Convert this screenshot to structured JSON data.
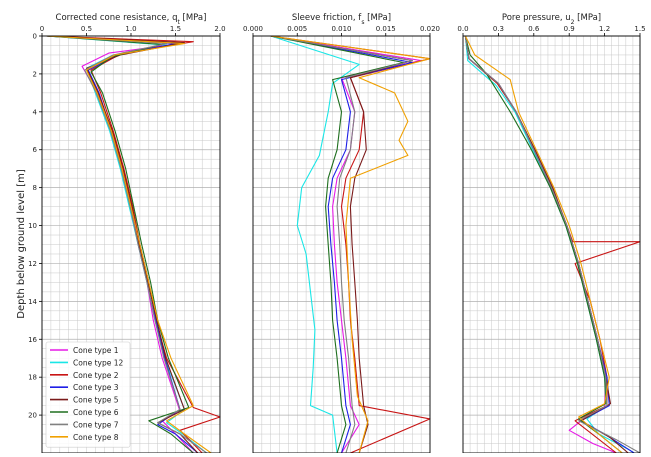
{
  "figure": {
    "ylabel": "Depth below ground level [m]",
    "legend_position": "lower-left of first panel"
  },
  "legend": [
    {
      "name": "Cone type 1",
      "color": "#e619e6"
    },
    {
      "name": "Cone type 12",
      "color": "#19e6e6"
    },
    {
      "name": "Cone type 2",
      "color": "#c81414"
    },
    {
      "name": "Cone type 3",
      "color": "#1e1ee6"
    },
    {
      "name": "Cone type 5",
      "color": "#7a1a1a"
    },
    {
      "name": "Cone type 6",
      "color": "#1e6e1e"
    },
    {
      "name": "Cone type 7",
      "color": "#808080"
    },
    {
      "name": "Cone type 8",
      "color": "#f0a000"
    }
  ],
  "chart_data": [
    {
      "type": "line",
      "title": "Corrected cone resistance, q",
      "title_sub": "t",
      "title_tail": " [MPa]",
      "xlabel": "Corrected cone resistance, qt [MPa]",
      "ylabel": "Depth below ground level [m]",
      "xlim": [
        0,
        2.0
      ],
      "ylim": [
        22,
        0
      ],
      "y_inverted": true,
      "x_axis_position": "top",
      "grid": true,
      "xticks": [
        0,
        0.5,
        1.0,
        1.5,
        2.0
      ],
      "xtick_labels": [
        "0",
        "0.5",
        "1.0",
        "1.5",
        "2.0"
      ],
      "yticks": [
        0,
        2,
        4,
        6,
        8,
        10,
        12,
        14,
        16,
        18,
        20
      ],
      "ytick_labels": [
        "0",
        "2",
        "4",
        "6",
        "8",
        "10",
        "12",
        "14",
        "16",
        "18",
        "20"
      ],
      "series": [
        {
          "name": "Cone type 1",
          "color": "#e619e6",
          "x": [
            0.05,
            1.55,
            0.75,
            0.45,
            0.62,
            0.78,
            0.9,
            1.0,
            1.08,
            1.18,
            1.25,
            1.35,
            1.55,
            1.35,
            1.5,
            1.7
          ],
          "y": [
            0,
            0.4,
            0.9,
            1.6,
            3,
            5,
            7,
            9,
            11,
            13,
            15,
            17,
            19.8,
            20.3,
            21,
            22
          ]
        },
        {
          "name": "Cone type 12",
          "color": "#19e6e6",
          "x": [
            0.05,
            1.45,
            0.8,
            0.5,
            0.6,
            0.76,
            0.88,
            0.98,
            1.08,
            1.18,
            1.27,
            1.38,
            1.6,
            1.4,
            1.58,
            1.85
          ],
          "y": [
            0,
            0.5,
            1.0,
            1.7,
            3,
            5,
            7,
            9,
            11,
            13,
            15,
            17,
            19.7,
            20.4,
            21,
            22
          ]
        },
        {
          "name": "Cone type 2",
          "color": "#c81414",
          "x": [
            0.05,
            1.7,
            0.9,
            0.55,
            0.66,
            0.8,
            0.92,
            1.02,
            1.1,
            1.2,
            1.28,
            1.4,
            1.7,
            2.0,
            1.55,
            1.8
          ],
          "y": [
            0,
            0.3,
            0.9,
            1.8,
            3,
            5,
            7,
            9,
            11,
            13,
            15,
            17,
            19.6,
            20.1,
            20.8,
            22
          ]
        },
        {
          "name": "Cone type 3",
          "color": "#1e1ee6",
          "x": [
            0.05,
            1.5,
            0.85,
            0.52,
            0.64,
            0.78,
            0.9,
            1.0,
            1.1,
            1.2,
            1.28,
            1.38,
            1.55,
            1.3,
            1.5,
            1.75
          ],
          "y": [
            0,
            0.4,
            1.0,
            1.8,
            3,
            5,
            7,
            9,
            11,
            13,
            15,
            17,
            19.7,
            20.5,
            21,
            22
          ]
        },
        {
          "name": "Cone type 5",
          "color": "#7a1a1a",
          "x": [
            0.05,
            1.6,
            0.88,
            0.5,
            0.63,
            0.79,
            0.91,
            1.01,
            1.09,
            1.19,
            1.29,
            1.39,
            1.6,
            1.3,
            1.55,
            1.75
          ],
          "y": [
            0,
            0.35,
            1.0,
            1.7,
            3,
            5,
            7,
            9,
            11,
            13,
            15,
            17,
            19.7,
            20.4,
            21,
            22
          ]
        },
        {
          "name": "Cone type 6",
          "color": "#1e6e1e",
          "x": [
            0.05,
            1.35,
            0.78,
            0.55,
            0.68,
            0.82,
            0.94,
            1.03,
            1.12,
            1.22,
            1.3,
            1.42,
            1.65,
            1.2,
            1.45,
            1.7
          ],
          "y": [
            0,
            0.45,
            1.1,
            1.9,
            3,
            5,
            7,
            9,
            11,
            13,
            15,
            17,
            19.6,
            20.3,
            21,
            22
          ]
        },
        {
          "name": "Cone type 7",
          "color": "#808080",
          "x": [
            0.05,
            1.4,
            0.8,
            0.48,
            0.61,
            0.77,
            0.89,
            0.99,
            1.08,
            1.18,
            1.27,
            1.37,
            1.55,
            1.3,
            1.55,
            1.85
          ],
          "y": [
            0,
            0.4,
            1.0,
            1.8,
            3,
            5,
            7,
            9,
            11,
            13,
            15,
            17,
            19.7,
            20.4,
            21,
            22
          ]
        },
        {
          "name": "Cone type 8",
          "color": "#f0a000",
          "x": [
            0.05,
            1.6,
            0.82,
            0.5,
            0.62,
            0.78,
            0.9,
            1.0,
            1.1,
            1.2,
            1.3,
            1.45,
            1.7,
            1.4,
            1.6,
            1.9
          ],
          "y": [
            0,
            0.4,
            1.0,
            1.8,
            3,
            5,
            7,
            9,
            11,
            13,
            15,
            17,
            19.5,
            20.3,
            21,
            22
          ]
        }
      ]
    },
    {
      "type": "line",
      "title": "Sleeve friction, f",
      "title_sub": "s",
      "title_tail": " [MPa]",
      "xlabel": "Sleeve friction, fs [MPa]",
      "xlim": [
        0,
        0.02
      ],
      "ylim": [
        22,
        0
      ],
      "y_inverted": true,
      "x_axis_position": "top",
      "grid": true,
      "xticks": [
        0,
        0.005,
        0.01,
        0.015,
        0.02
      ],
      "xtick_labels": [
        "0.000",
        "0.005",
        "0.010",
        "0.015",
        "0.020"
      ],
      "series": [
        {
          "name": "Cone type 1",
          "color": "#e619e6",
          "x": [
            0.002,
            0.019,
            0.01,
            0.0115,
            0.011,
            0.0095,
            0.009,
            0.0092,
            0.0095,
            0.01,
            0.0105,
            0.011,
            0.012,
            0.01
          ],
          "y": [
            0,
            1.3,
            2.2,
            4,
            6,
            7.5,
            9,
            11,
            13,
            15,
            17,
            19.5,
            20.5,
            22
          ]
        },
        {
          "name": "Cone type 12",
          "color": "#19e6e6",
          "x": [
            0.002,
            0.012,
            0.009,
            0.0085,
            0.0075,
            0.0055,
            0.005,
            0.006,
            0.0065,
            0.007,
            0.0068,
            0.0065,
            0.009,
            0.0095
          ],
          "y": [
            0,
            1.5,
            2.5,
            4,
            6.3,
            8,
            10,
            11.5,
            13.5,
            15.5,
            17.5,
            19.5,
            20,
            22
          ]
        },
        {
          "name": "Cone type 2",
          "color": "#c81414",
          "x": [
            0.002,
            0.02,
            0.011,
            0.0125,
            0.012,
            0.0105,
            0.01,
            0.0105,
            0.0108,
            0.011,
            0.0115,
            0.012,
            0.02,
            0.011
          ],
          "y": [
            0,
            1.2,
            2.2,
            4,
            6,
            7.5,
            9,
            11,
            13,
            15,
            17,
            19.5,
            20.2,
            22
          ]
        },
        {
          "name": "Cone type 3",
          "color": "#1e1ee6",
          "x": [
            0.002,
            0.018,
            0.01,
            0.011,
            0.0105,
            0.009,
            0.0085,
            0.0088,
            0.0092,
            0.0095,
            0.01,
            0.0105,
            0.011,
            0.01
          ],
          "y": [
            0,
            1.4,
            2.3,
            4,
            6,
            7.5,
            9,
            11,
            13,
            15,
            17,
            19.5,
            20.5,
            22
          ]
        },
        {
          "name": "Cone type 5",
          "color": "#7a1a1a",
          "x": [
            0.002,
            0.018,
            0.011,
            0.0125,
            0.0128,
            0.0115,
            0.011,
            0.0112,
            0.0115,
            0.0118,
            0.012,
            0.0125,
            0.013,
            0.012
          ],
          "y": [
            0,
            1.3,
            2.2,
            4,
            6,
            7.5,
            9,
            11,
            13,
            15,
            17,
            19.5,
            20.5,
            22
          ]
        },
        {
          "name": "Cone type 6",
          "color": "#1e6e1e",
          "x": [
            0.002,
            0.017,
            0.009,
            0.01,
            0.0095,
            0.0085,
            0.0082,
            0.0085,
            0.0088,
            0.009,
            0.0095,
            0.01,
            0.0105,
            0.0095
          ],
          "y": [
            0,
            1.4,
            2.3,
            4,
            6,
            7.5,
            9,
            11,
            13,
            15,
            17,
            19.5,
            20.5,
            22
          ]
        },
        {
          "name": "Cone type 7",
          "color": "#808080",
          "x": [
            0.002,
            0.018,
            0.0105,
            0.0115,
            0.011,
            0.0098,
            0.0095,
            0.0098,
            0.01,
            0.0103,
            0.0108,
            0.0112,
            0.0115,
            0.0105
          ],
          "y": [
            0,
            1.3,
            2.2,
            4,
            6,
            7.5,
            9,
            11,
            13,
            15,
            17,
            19.5,
            20.5,
            22
          ]
        },
        {
          "name": "Cone type 8",
          "color": "#f0a000",
          "x": [
            0.002,
            0.02,
            0.012,
            0.016,
            0.0175,
            0.0165,
            0.0175,
            0.011,
            0.0105,
            0.0108,
            0.0112,
            0.0118,
            0.013,
            0.012
          ],
          "y": [
            0,
            1.2,
            2.2,
            3,
            4.5,
            5.5,
            6.3,
            7.5,
            10,
            13,
            16,
            19,
            20.3,
            22
          ]
        }
      ]
    },
    {
      "type": "line",
      "title": "Pore pressure, u",
      "title_sub": "2",
      "title_tail": " [MPa]",
      "xlabel": "Pore pressure, u2 [MPa]",
      "xlim": [
        0,
        1.5
      ],
      "ylim": [
        22,
        0
      ],
      "y_inverted": true,
      "x_axis_position": "top",
      "grid": true,
      "xticks": [
        0,
        0.3,
        0.6,
        0.9,
        1.2,
        1.5
      ],
      "xtick_labels": [
        "0.0",
        "0.3",
        "0.6",
        "0.9",
        "1.2",
        "1.5"
      ],
      "series": [
        {
          "name": "Cone type 1",
          "color": "#e619e6",
          "x": [
            0.02,
            0.05,
            0.3,
            0.45,
            0.6,
            0.75,
            0.88,
            0.98,
            1.06,
            1.14,
            1.21,
            1.2,
            1.02,
            0.9,
            1.1,
            1.3
          ],
          "y": [
            0,
            1.2,
            2.5,
            4,
            6,
            8,
            10,
            12,
            14,
            16,
            18,
            19.6,
            20.2,
            20.8,
            21.5,
            22
          ]
        },
        {
          "name": "Cone type 12",
          "color": "#19e6e6",
          "x": [
            0.02,
            0.04,
            0.28,
            0.44,
            0.59,
            0.74,
            0.87,
            0.97,
            1.05,
            1.13,
            1.2,
            1.22,
            1.05,
            1.15,
            1.4,
            1.45
          ],
          "y": [
            0,
            1.3,
            2.6,
            4,
            6,
            8,
            10,
            12,
            14,
            16,
            18,
            19.5,
            20.2,
            21,
            21.8,
            22
          ]
        },
        {
          "name": "Cone type 2",
          "color": "#c81414",
          "x": [
            0.02,
            0.05,
            0.29,
            0.45,
            0.6,
            0.75,
            0.88,
            0.93,
            1.5,
            0.95,
            1.08,
            1.16,
            1.22,
            1.22,
            0.95,
            1.3
          ],
          "y": [
            0,
            1.2,
            2.5,
            4,
            6,
            8,
            10,
            10.85,
            10.85,
            12,
            14,
            16,
            18,
            19.5,
            20.3,
            22
          ]
        },
        {
          "name": "Cone type 3",
          "color": "#1e1ee6",
          "x": [
            0.02,
            0.05,
            0.3,
            0.45,
            0.6,
            0.75,
            0.88,
            0.98,
            1.06,
            1.14,
            1.22,
            1.24,
            1.0,
            1.2,
            1.35,
            1.45
          ],
          "y": [
            0,
            1.2,
            2.5,
            4,
            6,
            8,
            10,
            12,
            14,
            16,
            18,
            19.5,
            20.3,
            21,
            21.6,
            22
          ]
        },
        {
          "name": "Cone type 5",
          "color": "#7a1a1a",
          "x": [
            0.02,
            0.05,
            0.3,
            0.45,
            0.61,
            0.76,
            0.88,
            0.98,
            1.06,
            1.14,
            1.21,
            1.25,
            1.0,
            1.25,
            1.4
          ],
          "y": [
            0,
            1.2,
            2.5,
            4,
            6,
            8,
            10,
            12,
            14,
            16,
            18,
            19.4,
            20.3,
            21.2,
            22
          ]
        },
        {
          "name": "Cone type 6",
          "color": "#1e6e1e",
          "x": [
            0.02,
            0.06,
            0.2,
            0.4,
            0.58,
            0.74,
            0.87,
            0.97,
            1.05,
            1.13,
            1.2,
            1.21,
            0.98,
            1.15,
            1.35
          ],
          "y": [
            0,
            1.0,
            2.0,
            4,
            6,
            8,
            10,
            12,
            14,
            16,
            18,
            19.4,
            20.2,
            21,
            22
          ]
        },
        {
          "name": "Cone type 7",
          "color": "#808080",
          "x": [
            0.02,
            0.05,
            0.3,
            0.45,
            0.6,
            0.75,
            0.88,
            0.98,
            1.06,
            1.14,
            1.21,
            1.22,
            0.98,
            1.3,
            1.5
          ],
          "y": [
            0,
            1.2,
            2.5,
            4,
            6,
            8,
            10,
            12,
            14,
            16,
            18,
            19.5,
            20.3,
            21.3,
            22
          ]
        },
        {
          "name": "Cone type 8",
          "color": "#f0a000",
          "x": [
            0.02,
            0.1,
            0.4,
            0.47,
            0.62,
            0.77,
            0.9,
            1.0,
            1.08,
            1.16,
            1.24,
            1.2,
            0.98,
            1.15,
            1.35
          ],
          "y": [
            0,
            1.0,
            2.3,
            4,
            6,
            8,
            10,
            12,
            14,
            16,
            18,
            19.4,
            20.1,
            21,
            22
          ]
        }
      ]
    }
  ]
}
